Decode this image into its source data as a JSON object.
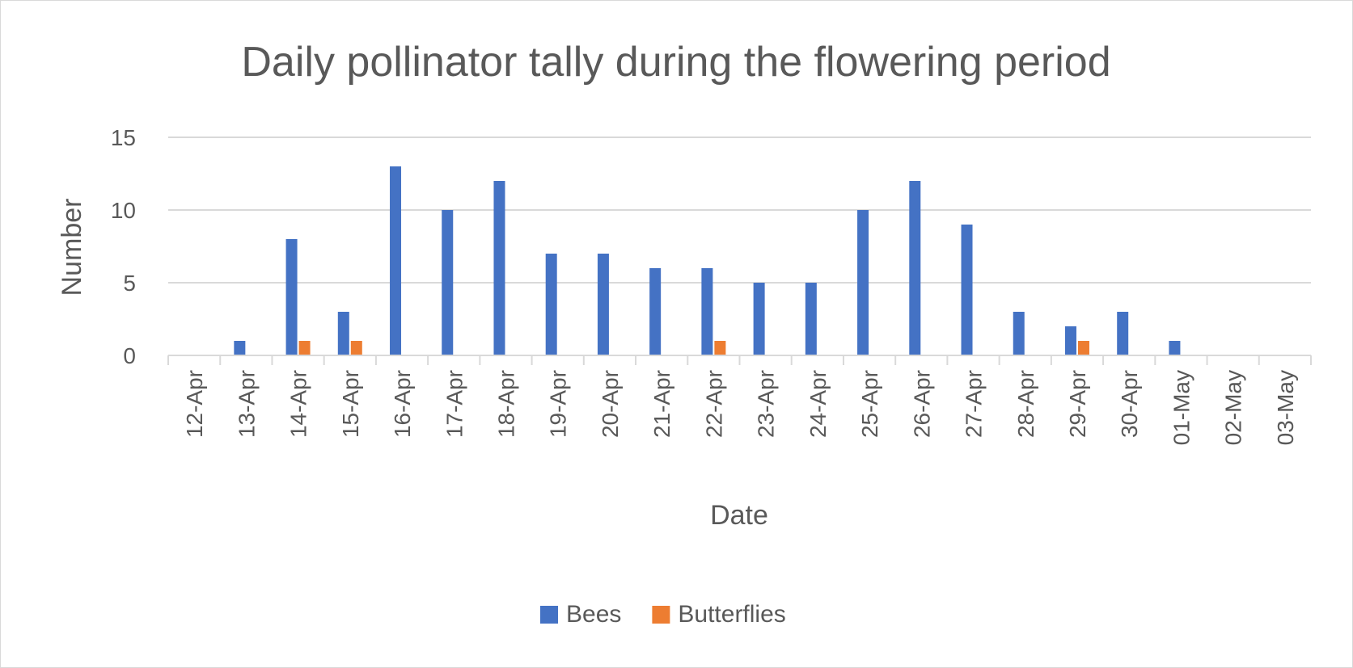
{
  "chart_data": {
    "type": "bar",
    "title": "Daily pollinator tally during the flowering period",
    "xlabel": "Date",
    "ylabel": "Number",
    "ylim": [
      0,
      15
    ],
    "yticks": [
      "0",
      "5",
      "10",
      "15"
    ],
    "grid": true,
    "legend_position": "bottom",
    "categories": [
      "12-Apr",
      "13-Apr",
      "14-Apr",
      "15-Apr",
      "16-Apr",
      "17-Apr",
      "18-Apr",
      "19-Apr",
      "20-Apr",
      "21-Apr",
      "22-Apr",
      "23-Apr",
      "24-Apr",
      "25-Apr",
      "26-Apr",
      "27-Apr",
      "28-Apr",
      "29-Apr",
      "30-Apr",
      "01-May",
      "02-May",
      "03-May"
    ],
    "series": [
      {
        "name": "Bees",
        "color": "#4472c4",
        "values": [
          0,
          1,
          8,
          3,
          13,
          10,
          12,
          7,
          7,
          6,
          6,
          5,
          5,
          10,
          12,
          9,
          3,
          2,
          3,
          1,
          0,
          0
        ]
      },
      {
        "name": "Butterflies",
        "color": "#ed7d31",
        "values": [
          0,
          0,
          1,
          1,
          0,
          0,
          0,
          0,
          0,
          0,
          1,
          0,
          0,
          0,
          0,
          0,
          0,
          1,
          0,
          0,
          0,
          0
        ]
      }
    ]
  }
}
